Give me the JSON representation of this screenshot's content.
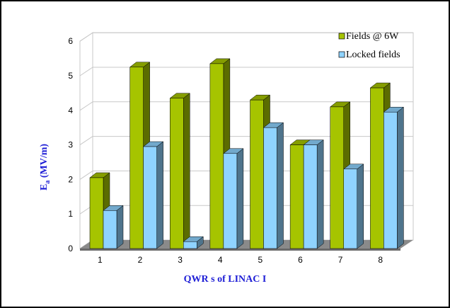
{
  "chart_data": {
    "type": "bar",
    "title": "",
    "xlabel": "QWR s of LINAC I",
    "ylabel_main": "E",
    "ylabel_sub": "a",
    "ylabel_rest": " (MV/m)",
    "ylim": [
      0,
      6
    ],
    "yticks": [
      "0",
      "1",
      "2",
      "3",
      "4",
      "5",
      "6"
    ],
    "categories": [
      "1",
      "2",
      "3",
      "4",
      "5",
      "6",
      "7",
      "8"
    ],
    "series": [
      {
        "name": "Fields @ 6W",
        "color": "#a6c400",
        "values": [
          2.05,
          5.25,
          4.35,
          5.35,
          4.3,
          3.0,
          4.1,
          4.65
        ]
      },
      {
        "name": "Locked fields",
        "color": "#8fd3ff",
        "values": [
          1.1,
          2.95,
          0.2,
          2.75,
          3.5,
          3.0,
          2.3,
          3.95
        ]
      }
    ],
    "grid": true,
    "legend": "top-right",
    "style": "3d"
  }
}
